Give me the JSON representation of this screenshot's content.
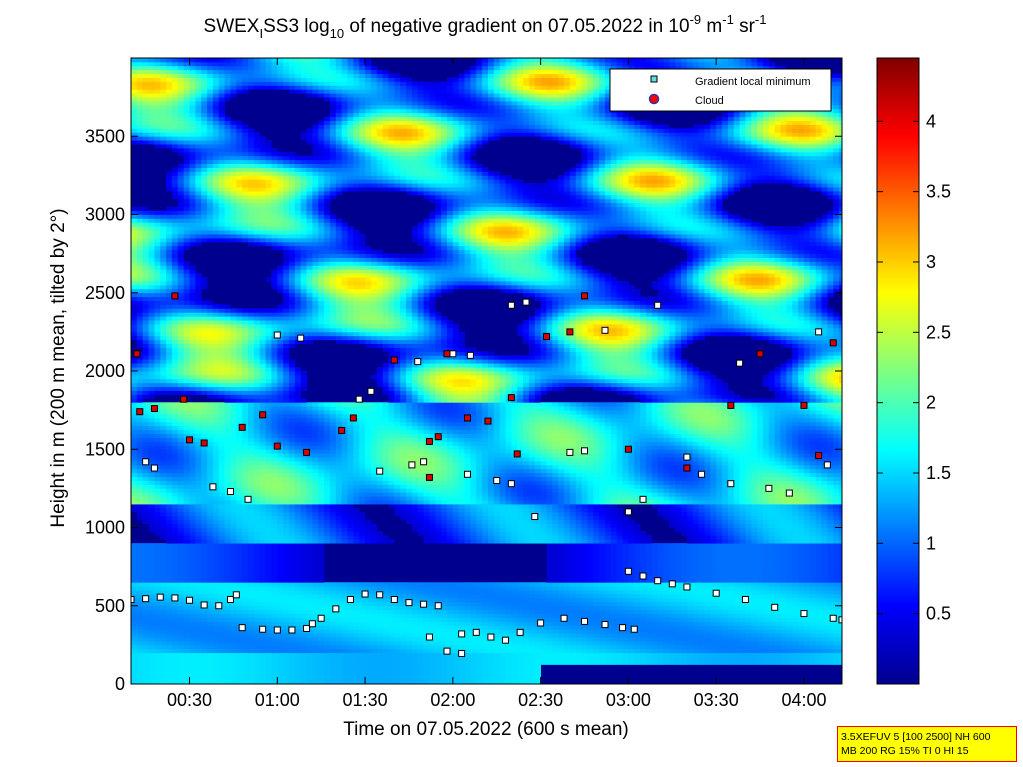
{
  "chart_data": {
    "type": "heatmap",
    "title": {
      "prefix": "SWEX",
      "sub1": "I",
      "mid": "SS3 log",
      "sub2": "10",
      "suffix": " of negative gradient on 07.05.2022 in 10",
      "sup1": "-9",
      "mid2": " m",
      "sup2": "-1",
      "mid3": " sr",
      "sup3": "-1"
    },
    "xlabel": "Time on 07.05.2022 (600 s mean)",
    "ylabel": "Height in m (200 m mean, tilted by 2°)",
    "xlim": [
      10,
      253
    ],
    "ylim": [
      0,
      4000
    ],
    "x_ticks": [
      {
        "v": 30,
        "label": "00:30"
      },
      {
        "v": 60,
        "label": "01:00"
      },
      {
        "v": 90,
        "label": "01:30"
      },
      {
        "v": 120,
        "label": "02:00"
      },
      {
        "v": 150,
        "label": "02:30"
      },
      {
        "v": 180,
        "label": "03:00"
      },
      {
        "v": 210,
        "label": "03:30"
      },
      {
        "v": 240,
        "label": "04:00"
      }
    ],
    "y_ticks": [
      {
        "v": 0,
        "label": "0"
      },
      {
        "v": 500,
        "label": "500"
      },
      {
        "v": 1000,
        "label": "1000"
      },
      {
        "v": 1500,
        "label": "1500"
      },
      {
        "v": 2000,
        "label": "2000"
      },
      {
        "v": 2500,
        "label": "2500"
      },
      {
        "v": 3000,
        "label": "3000"
      },
      {
        "v": 3500,
        "label": "3500"
      }
    ],
    "colorbar": {
      "clim": [
        0,
        4.45
      ],
      "ticks": [
        {
          "v": 0.5,
          "label": "0.5"
        },
        {
          "v": 1,
          "label": "1"
        },
        {
          "v": 1.5,
          "label": "1.5"
        },
        {
          "v": 2,
          "label": "2"
        },
        {
          "v": 2.5,
          "label": "2.5"
        },
        {
          "v": 3,
          "label": "3"
        },
        {
          "v": 3.5,
          "label": "3.5"
        },
        {
          "v": 4,
          "label": "4"
        }
      ],
      "colormap": "jet"
    },
    "legend": {
      "placement": "top-right",
      "entries": [
        "Gradient local minimum",
        "Cloud"
      ]
    },
    "series": [
      {
        "name": "Gradient local minimum",
        "marker": "square",
        "points": [
          [
            10,
            540
          ],
          [
            15,
            545
          ],
          [
            20,
            555
          ],
          [
            25,
            550
          ],
          [
            30,
            535
          ],
          [
            35,
            505
          ],
          [
            40,
            500
          ],
          [
            44,
            540
          ],
          [
            46,
            570
          ],
          [
            48,
            360
          ],
          [
            55,
            350
          ],
          [
            60,
            345
          ],
          [
            65,
            345
          ],
          [
            70,
            355
          ],
          [
            72,
            385
          ],
          [
            75,
            420
          ],
          [
            80,
            480
          ],
          [
            85,
            540
          ],
          [
            90,
            575
          ],
          [
            95,
            570
          ],
          [
            100,
            540
          ],
          [
            105,
            520
          ],
          [
            110,
            510
          ],
          [
            115,
            500
          ],
          [
            112,
            300
          ],
          [
            118,
            210
          ],
          [
            123,
            195
          ],
          [
            123,
            320
          ],
          [
            128,
            330
          ],
          [
            133,
            300
          ],
          [
            138,
            280
          ],
          [
            143,
            330
          ],
          [
            150,
            390
          ],
          [
            158,
            420
          ],
          [
            165,
            400
          ],
          [
            172,
            380
          ],
          [
            178,
            360
          ],
          [
            182,
            350
          ],
          [
            180,
            720
          ],
          [
            185,
            690
          ],
          [
            190,
            660
          ],
          [
            195,
            640
          ],
          [
            200,
            620
          ],
          [
            210,
            580
          ],
          [
            220,
            540
          ],
          [
            230,
            490
          ],
          [
            240,
            450
          ],
          [
            250,
            420
          ],
          [
            253,
            410
          ],
          [
            15,
            1420
          ],
          [
            18,
            1380
          ],
          [
            38,
            1260
          ],
          [
            44,
            1230
          ],
          [
            50,
            1180
          ],
          [
            95,
            1360
          ],
          [
            106,
            1400
          ],
          [
            110,
            1420
          ],
          [
            125,
            1340
          ],
          [
            135,
            1300
          ],
          [
            140,
            1280
          ],
          [
            148,
            1070
          ],
          [
            160,
            1480
          ],
          [
            165,
            1490
          ],
          [
            180,
            1100
          ],
          [
            185,
            1180
          ],
          [
            200,
            1450
          ],
          [
            205,
            1340
          ],
          [
            215,
            1280
          ],
          [
            228,
            1250
          ],
          [
            235,
            1220
          ],
          [
            248,
            1400
          ],
          [
            60,
            2230
          ],
          [
            68,
            2210
          ],
          [
            88,
            1820
          ],
          [
            92,
            1870
          ],
          [
            108,
            2060
          ],
          [
            120,
            2110
          ],
          [
            126,
            2100
          ],
          [
            140,
            2420
          ],
          [
            145,
            2440
          ],
          [
            172,
            2260
          ],
          [
            190,
            2420
          ],
          [
            218,
            2050
          ],
          [
            245,
            2250
          ]
        ]
      },
      {
        "name": "Cloud",
        "marker": "filled-circle",
        "points": [
          [
            12,
            2110
          ],
          [
            13,
            1740
          ],
          [
            18,
            1760
          ],
          [
            25,
            2480
          ],
          [
            28,
            1820
          ],
          [
            30,
            1560
          ],
          [
            35,
            1540
          ],
          [
            48,
            1640
          ],
          [
            55,
            1720
          ],
          [
            60,
            1520
          ],
          [
            70,
            1480
          ],
          [
            82,
            1620
          ],
          [
            86,
            1700
          ],
          [
            100,
            2070
          ],
          [
            112,
            1550
          ],
          [
            118,
            2110
          ],
          [
            112,
            1320
          ],
          [
            125,
            1700
          ],
          [
            132,
            1680
          ],
          [
            140,
            1830
          ],
          [
            142,
            1470
          ],
          [
            152,
            2220
          ],
          [
            160,
            2250
          ],
          [
            165,
            2480
          ],
          [
            180,
            1500
          ],
          [
            200,
            1380
          ],
          [
            215,
            1780
          ],
          [
            225,
            2110
          ],
          [
            240,
            1780
          ],
          [
            250,
            2180
          ],
          [
            245,
            1460
          ],
          [
            115,
            1580
          ]
        ]
      }
    ]
  },
  "infobox": {
    "line1": "3.5XEFUV 5 [100 2500] NH 600",
    "line2": "MB 200 RG 15% TI 0 HI 15"
  }
}
